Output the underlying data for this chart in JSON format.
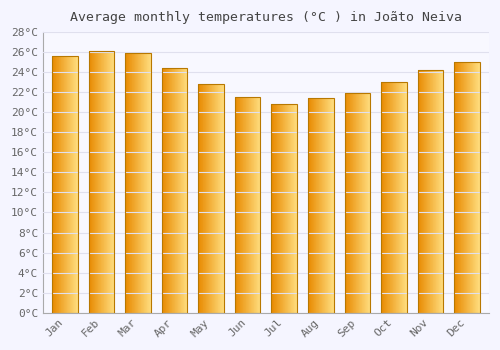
{
  "title": "Average monthly temperatures (°C ) in Joãto Neiva",
  "months": [
    "Jan",
    "Feb",
    "Mar",
    "Apr",
    "May",
    "Jun",
    "Jul",
    "Aug",
    "Sep",
    "Oct",
    "Nov",
    "Dec"
  ],
  "values": [
    25.6,
    26.1,
    25.9,
    24.4,
    22.8,
    21.5,
    20.8,
    21.4,
    21.9,
    23.0,
    24.2,
    25.0
  ],
  "ylim": [
    0,
    28
  ],
  "ytick_step": 2,
  "bar_color_left": "#E88A00",
  "bar_color_right": "#FFDD80",
  "bar_edge_color": "#B87800",
  "background_color": "#F5F5FF",
  "plot_bg_color": "#F8F8FF",
  "grid_color": "#E0E0EE",
  "title_fontsize": 9.5,
  "tick_fontsize": 8,
  "title_color": "#444444",
  "tick_color": "#666666"
}
